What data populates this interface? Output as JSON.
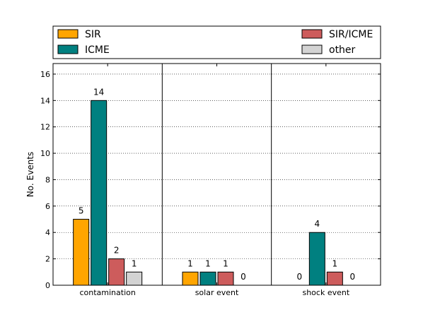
{
  "chart_data": {
    "type": "bar",
    "categories": [
      "contamination",
      "solar event",
      "shock event"
    ],
    "series": [
      {
        "name": "SIR",
        "values": [
          5,
          1,
          0
        ],
        "color": "#ffa500"
      },
      {
        "name": "ICME",
        "values": [
          14,
          1,
          4
        ],
        "color": "#008080"
      },
      {
        "name": "SIR/ICME",
        "values": [
          2,
          1,
          1
        ],
        "color": "#cd5c5c"
      },
      {
        "name": "other",
        "values": [
          1,
          0,
          0
        ],
        "color": "#d3d3d3"
      }
    ],
    "data_labels": [
      [
        "5",
        "1",
        "0"
      ],
      [
        "14",
        "1",
        "4"
      ],
      [
        "2",
        "1",
        "1"
      ],
      [
        "1",
        "0",
        "0"
      ]
    ],
    "ylabel": "No. Events",
    "xlabel": "",
    "ylim": [
      0,
      16.8
    ],
    "yticks": [
      0,
      2,
      4,
      6,
      8,
      10,
      12,
      14,
      16
    ],
    "ytick_labels": [
      "0",
      "2",
      "4",
      "6",
      "8",
      "10",
      "12",
      "14",
      "16"
    ],
    "grid": "horizontal dotted",
    "legend": {
      "placement": "top, above plot",
      "columns": [
        [
          "SIR",
          "ICME"
        ],
        [
          "SIR/ICME",
          "other"
        ]
      ]
    }
  }
}
